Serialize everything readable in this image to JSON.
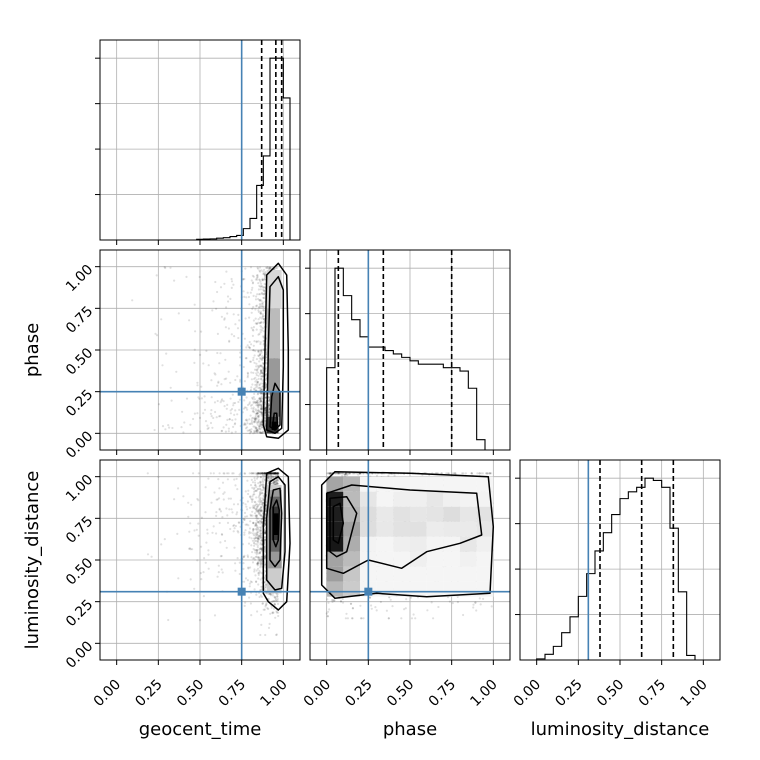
{
  "chart_data": {
    "type": "corner",
    "parameters": [
      "geocent_time",
      "phase",
      "luminosity_distance"
    ],
    "axis_range": [
      -0.1,
      1.1
    ],
    "tick_values": [
      0.0,
      0.25,
      0.5,
      0.75,
      1.0
    ],
    "tick_labels": [
      "0.00",
      "0.25",
      "0.50",
      "0.75",
      "1.00"
    ],
    "truths": {
      "geocent_time": 0.75,
      "phase": 0.25,
      "luminosity_distance": 0.31
    },
    "truth_color": "#4682b4",
    "grid": true,
    "histograms": [
      {
        "parameter": "geocent_time",
        "bin_edges": [
          0.0,
          0.04,
          0.08,
          0.12,
          0.16,
          0.2,
          0.24,
          0.28,
          0.32,
          0.36,
          0.4,
          0.44,
          0.48,
          0.52,
          0.56,
          0.6,
          0.64,
          0.68,
          0.72,
          0.76,
          0.8,
          0.84,
          0.88,
          0.92,
          0.96,
          1.0,
          1.04
        ],
        "counts": [
          0,
          0,
          0,
          0,
          0,
          0,
          0,
          0,
          0,
          0,
          0,
          0,
          0.3,
          0.4,
          0.5,
          0.8,
          1.0,
          1.5,
          2.0,
          5.0,
          9.5,
          24.0,
          37.0,
          80.0,
          80.0,
          62.5
        ],
        "quantiles": [
          0.87,
          0.955,
          0.99
        ]
      },
      {
        "parameter": "phase",
        "bin_edges": [
          0.0,
          0.05,
          0.1,
          0.15,
          0.2,
          0.25,
          0.3,
          0.35,
          0.4,
          0.45,
          0.5,
          0.55,
          0.6,
          0.65,
          0.7,
          0.75,
          0.8,
          0.85,
          0.9,
          0.95,
          1.0
        ],
        "counts": [
          24,
          53,
          45,
          38,
          33,
          30,
          30,
          29,
          28,
          27,
          26,
          25,
          25,
          25,
          24,
          24,
          23,
          18,
          3,
          0
        ],
        "quantiles": [
          0.07,
          0.34,
          0.75
        ]
      },
      {
        "parameter": "luminosity_distance",
        "bin_edges": [
          0.0,
          0.05,
          0.1,
          0.15,
          0.2,
          0.25,
          0.3,
          0.35,
          0.4,
          0.45,
          0.5,
          0.55,
          0.6,
          0.65,
          0.7,
          0.75,
          0.8,
          0.85,
          0.9,
          0.95,
          1.0
        ],
        "counts": [
          0.5,
          2.5,
          6,
          12,
          19,
          28,
          38,
          48,
          56,
          64,
          71,
          74,
          76,
          80,
          79,
          76,
          58,
          30,
          2,
          0
        ],
        "quantiles": [
          0.38,
          0.63,
          0.82
        ]
      }
    ],
    "scatter_panels": [
      {
        "x": "geocent_time",
        "y": "phase",
        "contour_x_range": [
          0.87,
          1.05
        ],
        "contour_peak": [
          0.95,
          0.06
        ],
        "point_density": "concentrated near geocent_time 0.9-1.0, spread over phase 0-1"
      },
      {
        "x": "geocent_time",
        "y": "luminosity_distance",
        "contour_x_range": [
          0.87,
          1.05
        ],
        "contour_peak": [
          0.96,
          0.72
        ],
        "point_density": "concentrated near geocent_time 0.9-1.0, luminosity_distance 0.1-1.0"
      },
      {
        "x": "phase",
        "y": "luminosity_distance",
        "contour_x_range": [
          -0.03,
          1.0
        ],
        "contour_peak": [
          0.03,
          0.72
        ],
        "point_density": "broad over phase 0-1, luminosity_distance 0.2-1.0"
      }
    ]
  }
}
